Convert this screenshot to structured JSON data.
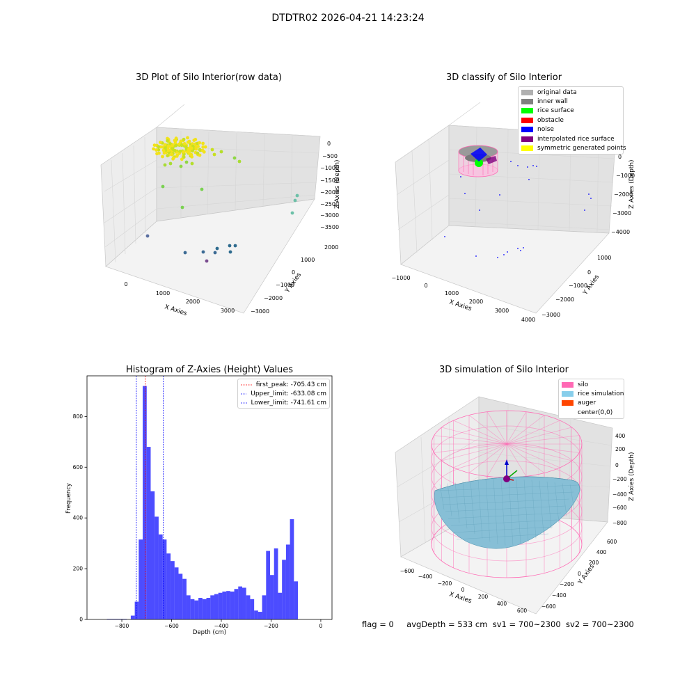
{
  "figure_title": "DTDTR02 2026-04-21 14:23:24",
  "panels": {
    "raw": {
      "title": "3D Plot of Silo Interior(row data)",
      "xlabel": "X Axies",
      "ylabel": "Y Axies",
      "zlabel": "Z Axies (Depth)",
      "xticks": [
        "0",
        "1000",
        "2000",
        "3000"
      ],
      "yticks": [
        "2000",
        "1000",
        "0",
        "−1000",
        "−2000",
        "−3000"
      ],
      "zticks": [
        "0",
        "−500",
        "−1000",
        "−1500",
        "−2000",
        "−2500",
        "−3000",
        "−3500"
      ]
    },
    "classify": {
      "title": "3D classify of Silo Interior",
      "xlabel": "X Axies",
      "ylabel": "Y Axies",
      "zlabel": "Z Axies (Depth)",
      "xticks": [
        "−1000",
        "0",
        "1000",
        "2000",
        "3000",
        "4000"
      ],
      "yticks": [
        "1000",
        "0",
        "−1000",
        "−2000",
        "−3000"
      ],
      "zticks": [
        "0",
        "−1000",
        "−2000",
        "−3000",
        "−4000"
      ],
      "legend": [
        {
          "label": "original data",
          "color": "#b0b0b0"
        },
        {
          "label": "inner wall",
          "color": "#808080"
        },
        {
          "label": "rice surface",
          "color": "#00ff00"
        },
        {
          "label": "obstacle",
          "color": "#ff0000"
        },
        {
          "label": "noise",
          "color": "#0000ff"
        },
        {
          "label": "interpolated rice surface",
          "color": "#800080"
        },
        {
          "label": "symmetric generated points",
          "color": "#ffff00"
        }
      ]
    },
    "simulation": {
      "title": "3D simulation of Silo Interior",
      "xlabel": "X Axies",
      "ylabel": "Y Axies",
      "zlabel": "Z Axies (Depth)",
      "xticks": [
        "−600",
        "−400",
        "−200",
        "0",
        "200",
        "400",
        "600"
      ],
      "yticks": [
        "600",
        "400",
        "200",
        "0",
        "−200",
        "−400",
        "−600"
      ],
      "zticks": [
        "400",
        "200",
        "0",
        "−200",
        "−400",
        "−600",
        "−800"
      ],
      "legend": [
        {
          "label": "silo",
          "color": "#ff69b4"
        },
        {
          "label": "rice simulation",
          "color": "#87ceeb"
        },
        {
          "label": "auger",
          "color": "#ff4500"
        },
        {
          "label": "center(0,0)",
          "color": ""
        }
      ]
    }
  },
  "chart_data": [
    {
      "type": "bar",
      "title": "Histogram of Z-Axies (Height) Values",
      "xlabel": "Depth (cm)",
      "ylabel": "Frequency",
      "xlim": [
        -940,
        45
      ],
      "ylim": [
        0,
        960
      ],
      "xticks": [
        -800,
        -600,
        -400,
        -200,
        0
      ],
      "yticks": [
        0,
        200,
        400,
        600,
        800
      ],
      "bar_color": "#0000ff",
      "bin_width": 16,
      "bins": [
        {
          "x": -860,
          "y": 2
        },
        {
          "x": -844,
          "y": 2
        },
        {
          "x": -828,
          "y": 2
        },
        {
          "x": -812,
          "y": 2
        },
        {
          "x": -796,
          "y": 2
        },
        {
          "x": -780,
          "y": 0
        },
        {
          "x": -764,
          "y": 15
        },
        {
          "x": -748,
          "y": 70
        },
        {
          "x": -732,
          "y": 315
        },
        {
          "x": -716,
          "y": 920
        },
        {
          "x": -700,
          "y": 680
        },
        {
          "x": -684,
          "y": 505
        },
        {
          "x": -668,
          "y": 405
        },
        {
          "x": -652,
          "y": 335
        },
        {
          "x": -636,
          "y": 315
        },
        {
          "x": -620,
          "y": 260
        },
        {
          "x": -604,
          "y": 230
        },
        {
          "x": -588,
          "y": 205
        },
        {
          "x": -572,
          "y": 180
        },
        {
          "x": -556,
          "y": 160
        },
        {
          "x": -540,
          "y": 95
        },
        {
          "x": -524,
          "y": 80
        },
        {
          "x": -508,
          "y": 75
        },
        {
          "x": -492,
          "y": 85
        },
        {
          "x": -476,
          "y": 80
        },
        {
          "x": -460,
          "y": 85
        },
        {
          "x": -444,
          "y": 95
        },
        {
          "x": -428,
          "y": 100
        },
        {
          "x": -412,
          "y": 105
        },
        {
          "x": -396,
          "y": 110
        },
        {
          "x": -380,
          "y": 112
        },
        {
          "x": -364,
          "y": 110
        },
        {
          "x": -348,
          "y": 120
        },
        {
          "x": -332,
          "y": 130
        },
        {
          "x": -316,
          "y": 125
        },
        {
          "x": -300,
          "y": 95
        },
        {
          "x": -284,
          "y": 80
        },
        {
          "x": -268,
          "y": 35
        },
        {
          "x": -252,
          "y": 30
        },
        {
          "x": -236,
          "y": 95
        },
        {
          "x": -220,
          "y": 270
        },
        {
          "x": -204,
          "y": 175
        },
        {
          "x": -188,
          "y": 280
        },
        {
          "x": -172,
          "y": 105
        },
        {
          "x": -156,
          "y": 235
        },
        {
          "x": -140,
          "y": 295
        },
        {
          "x": -124,
          "y": 395
        },
        {
          "x": -108,
          "y": 150
        }
      ],
      "vlines": [
        {
          "label": "first_peak: -705.43 cm",
          "x": -705.43,
          "color": "#ff0000"
        },
        {
          "label": "Upper_limit: -633.08 cm",
          "x": -633.08,
          "color": "#0000ff"
        },
        {
          "label": "Lower_limit: -741.61 cm",
          "x": -741.61,
          "color": "#0000ff"
        }
      ],
      "legend_position": "upper right",
      "grid": false
    }
  ],
  "status": {
    "flag": "flag = 0",
    "avg_depth": "avgDepth = 533 cm",
    "sv1": "sv1 = 700~2300",
    "sv2": "sv2 = 700~2300"
  }
}
